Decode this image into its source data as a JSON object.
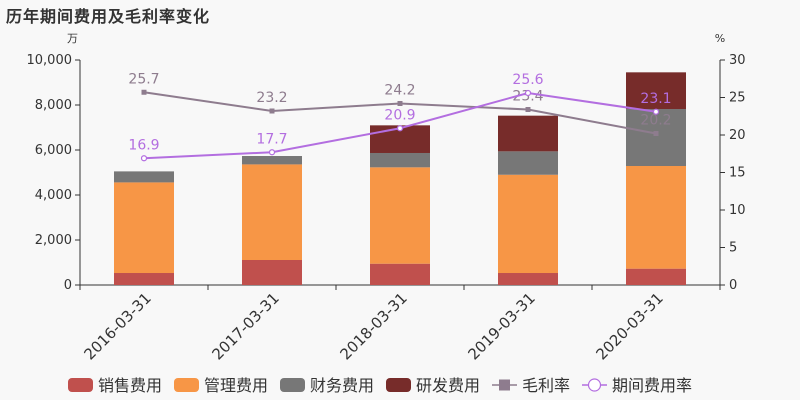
{
  "chart_data": {
    "type": "bar",
    "title": "历年期间费用及毛利率变化",
    "categories": [
      "2016-03-31",
      "2017-03-31",
      "2018-03-31",
      "2019-03-31",
      "2020-03-31"
    ],
    "left_axis": {
      "unit": "万",
      "range": [
        0,
        10000
      ],
      "ticks": [
        "0",
        "2,000",
        "4,000",
        "6,000",
        "8,000",
        "10,000"
      ]
    },
    "right_axis": {
      "unit": "%",
      "range": [
        0,
        30
      ],
      "ticks": [
        "0",
        "5",
        "10",
        "15",
        "20",
        "25",
        "30"
      ]
    },
    "grid": false,
    "legend_position": "bottom",
    "stacked_series": [
      {
        "name": "销售费用",
        "color": "#c0504d",
        "values": [
          533,
          1111,
          947,
          533,
          726
        ]
      },
      {
        "name": "管理费用",
        "color": "#f79646",
        "values": [
          4027,
          4249,
          4283,
          4367,
          4563
        ]
      },
      {
        "name": "财务费用",
        "color": "#777777",
        "values": [
          490,
          373,
          637,
          1040,
          2533
        ]
      },
      {
        "name": "研发费用",
        "color": "#772c2a",
        "values": [
          0,
          0,
          1229,
          1586,
          1630
        ]
      }
    ],
    "line_series": [
      {
        "name": "毛利率",
        "color": "#8e7c8e",
        "marker": "square",
        "values": [
          25.7,
          23.2,
          24.2,
          23.4,
          20.2
        ],
        "labels": [
          "25.7",
          "23.2",
          "24.2",
          "23.4",
          "20.2"
        ]
      },
      {
        "name": "期间费用率",
        "color": "#b36ee0",
        "marker": "circle",
        "values": [
          16.9,
          17.7,
          20.9,
          25.6,
          23.1
        ],
        "labels": [
          "16.9",
          "17.7",
          "20.9",
          "25.6",
          "23.1"
        ]
      }
    ]
  }
}
